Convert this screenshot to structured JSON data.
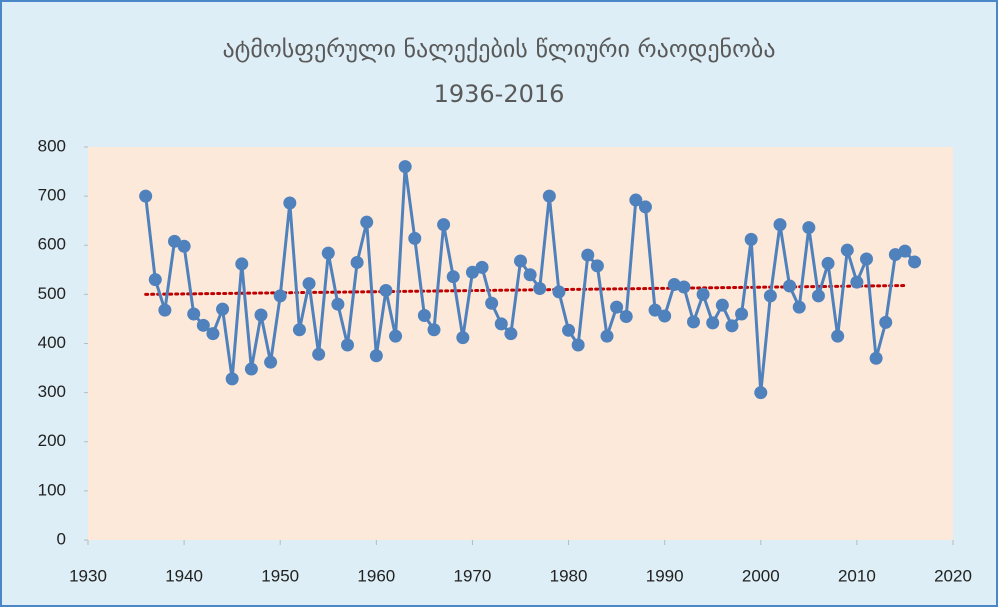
{
  "chart_data": {
    "type": "line",
    "title": "ატმოსფერული ნალექების წლიური რაოდენობა",
    "subtitle": "1936-2016",
    "x": [
      1936,
      1937,
      1938,
      1939,
      1940,
      1941,
      1942,
      1943,
      1944,
      1945,
      1946,
      1947,
      1948,
      1949,
      1950,
      1951,
      1952,
      1953,
      1954,
      1955,
      1956,
      1957,
      1958,
      1959,
      1960,
      1961,
      1962,
      1963,
      1964,
      1965,
      1966,
      1967,
      1968,
      1969,
      1970,
      1971,
      1972,
      1973,
      1974,
      1975,
      1976,
      1977,
      1978,
      1979,
      1980,
      1981,
      1982,
      1983,
      1984,
      1985,
      1986,
      1987,
      1988,
      1989,
      1990,
      1991,
      1992,
      1993,
      1994,
      1995,
      1996,
      1997,
      1998,
      1999,
      2000,
      2001,
      2002,
      2003,
      2004,
      2005,
      2006,
      2007,
      2008,
      2009,
      2010,
      2011,
      2012,
      2013,
      2014,
      2015,
      2016
    ],
    "values": [
      700,
      530,
      468,
      608,
      598,
      460,
      437,
      420,
      470,
      328,
      562,
      348,
      458,
      362,
      497,
      686,
      428,
      522,
      378,
      584,
      480,
      397,
      565,
      647,
      375,
      508,
      415,
      760,
      614,
      457,
      428,
      642,
      536,
      412,
      545,
      555,
      482,
      440,
      420,
      568,
      540,
      512,
      700,
      505,
      427,
      397,
      580,
      558,
      415,
      474,
      455,
      692,
      678,
      468,
      456,
      520,
      515,
      444,
      500,
      442,
      478,
      436,
      460,
      612,
      300,
      497,
      642,
      517,
      474,
      636,
      497,
      563,
      415,
      590,
      525,
      572,
      370,
      443,
      581,
      588,
      566
    ],
    "color": "#4f81bd",
    "trendline": {
      "x": [
        1936,
        2015
      ],
      "values": [
        500,
        518
      ],
      "color": "#c00000"
    },
    "xlim": [
      1930,
      2020
    ],
    "xticks": [
      1930,
      1940,
      1950,
      1960,
      1970,
      1980,
      1990,
      2000,
      2010,
      2020
    ],
    "ylim": [
      0,
      800
    ],
    "yticks": [
      0,
      100,
      200,
      300,
      400,
      500,
      600,
      700,
      800
    ]
  }
}
